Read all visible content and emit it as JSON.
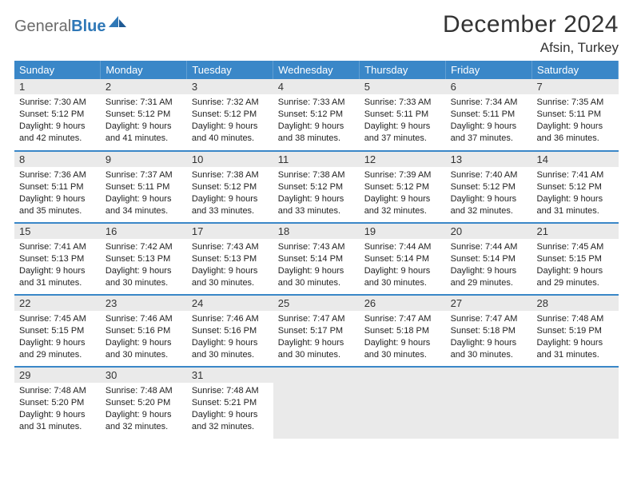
{
  "brand": {
    "general": "General",
    "blue": "Blue"
  },
  "colors": {
    "header_bg": "#3a87c8",
    "daynum_bg": "#eaeaea",
    "border": "#3a87c8",
    "logo_gray": "#6b6b6b",
    "logo_blue": "#2f78b7",
    "background": "#ffffff",
    "text": "#333333"
  },
  "title": "December 2024",
  "location": "Afsin, Turkey",
  "day_headers": [
    "Sunday",
    "Monday",
    "Tuesday",
    "Wednesday",
    "Thursday",
    "Friday",
    "Saturday"
  ],
  "weeks": [
    [
      {
        "n": "1",
        "sr": "7:30 AM",
        "ss": "5:12 PM",
        "dl": "9 hours and 42 minutes."
      },
      {
        "n": "2",
        "sr": "7:31 AM",
        "ss": "5:12 PM",
        "dl": "9 hours and 41 minutes."
      },
      {
        "n": "3",
        "sr": "7:32 AM",
        "ss": "5:12 PM",
        "dl": "9 hours and 40 minutes."
      },
      {
        "n": "4",
        "sr": "7:33 AM",
        "ss": "5:12 PM",
        "dl": "9 hours and 38 minutes."
      },
      {
        "n": "5",
        "sr": "7:33 AM",
        "ss": "5:11 PM",
        "dl": "9 hours and 37 minutes."
      },
      {
        "n": "6",
        "sr": "7:34 AM",
        "ss": "5:11 PM",
        "dl": "9 hours and 37 minutes."
      },
      {
        "n": "7",
        "sr": "7:35 AM",
        "ss": "5:11 PM",
        "dl": "9 hours and 36 minutes."
      }
    ],
    [
      {
        "n": "8",
        "sr": "7:36 AM",
        "ss": "5:11 PM",
        "dl": "9 hours and 35 minutes."
      },
      {
        "n": "9",
        "sr": "7:37 AM",
        "ss": "5:11 PM",
        "dl": "9 hours and 34 minutes."
      },
      {
        "n": "10",
        "sr": "7:38 AM",
        "ss": "5:12 PM",
        "dl": "9 hours and 33 minutes."
      },
      {
        "n": "11",
        "sr": "7:38 AM",
        "ss": "5:12 PM",
        "dl": "9 hours and 33 minutes."
      },
      {
        "n": "12",
        "sr": "7:39 AM",
        "ss": "5:12 PM",
        "dl": "9 hours and 32 minutes."
      },
      {
        "n": "13",
        "sr": "7:40 AM",
        "ss": "5:12 PM",
        "dl": "9 hours and 32 minutes."
      },
      {
        "n": "14",
        "sr": "7:41 AM",
        "ss": "5:12 PM",
        "dl": "9 hours and 31 minutes."
      }
    ],
    [
      {
        "n": "15",
        "sr": "7:41 AM",
        "ss": "5:13 PM",
        "dl": "9 hours and 31 minutes."
      },
      {
        "n": "16",
        "sr": "7:42 AM",
        "ss": "5:13 PM",
        "dl": "9 hours and 30 minutes."
      },
      {
        "n": "17",
        "sr": "7:43 AM",
        "ss": "5:13 PM",
        "dl": "9 hours and 30 minutes."
      },
      {
        "n": "18",
        "sr": "7:43 AM",
        "ss": "5:14 PM",
        "dl": "9 hours and 30 minutes."
      },
      {
        "n": "19",
        "sr": "7:44 AM",
        "ss": "5:14 PM",
        "dl": "9 hours and 30 minutes."
      },
      {
        "n": "20",
        "sr": "7:44 AM",
        "ss": "5:14 PM",
        "dl": "9 hours and 29 minutes."
      },
      {
        "n": "21",
        "sr": "7:45 AM",
        "ss": "5:15 PM",
        "dl": "9 hours and 29 minutes."
      }
    ],
    [
      {
        "n": "22",
        "sr": "7:45 AM",
        "ss": "5:15 PM",
        "dl": "9 hours and 29 minutes."
      },
      {
        "n": "23",
        "sr": "7:46 AM",
        "ss": "5:16 PM",
        "dl": "9 hours and 30 minutes."
      },
      {
        "n": "24",
        "sr": "7:46 AM",
        "ss": "5:16 PM",
        "dl": "9 hours and 30 minutes."
      },
      {
        "n": "25",
        "sr": "7:47 AM",
        "ss": "5:17 PM",
        "dl": "9 hours and 30 minutes."
      },
      {
        "n": "26",
        "sr": "7:47 AM",
        "ss": "5:18 PM",
        "dl": "9 hours and 30 minutes."
      },
      {
        "n": "27",
        "sr": "7:47 AM",
        "ss": "5:18 PM",
        "dl": "9 hours and 30 minutes."
      },
      {
        "n": "28",
        "sr": "7:48 AM",
        "ss": "5:19 PM",
        "dl": "9 hours and 31 minutes."
      }
    ],
    [
      {
        "n": "29",
        "sr": "7:48 AM",
        "ss": "5:20 PM",
        "dl": "9 hours and 31 minutes."
      },
      {
        "n": "30",
        "sr": "7:48 AM",
        "ss": "5:20 PM",
        "dl": "9 hours and 32 minutes."
      },
      {
        "n": "31",
        "sr": "7:48 AM",
        "ss": "5:21 PM",
        "dl": "9 hours and 32 minutes."
      },
      null,
      null,
      null,
      null
    ]
  ],
  "labels": {
    "sunrise": "Sunrise: ",
    "sunset": "Sunset: ",
    "daylight": "Daylight: "
  },
  "typography": {
    "title_fontsize": 30,
    "location_fontsize": 17,
    "header_fontsize": 13,
    "body_fontsize": 11
  }
}
